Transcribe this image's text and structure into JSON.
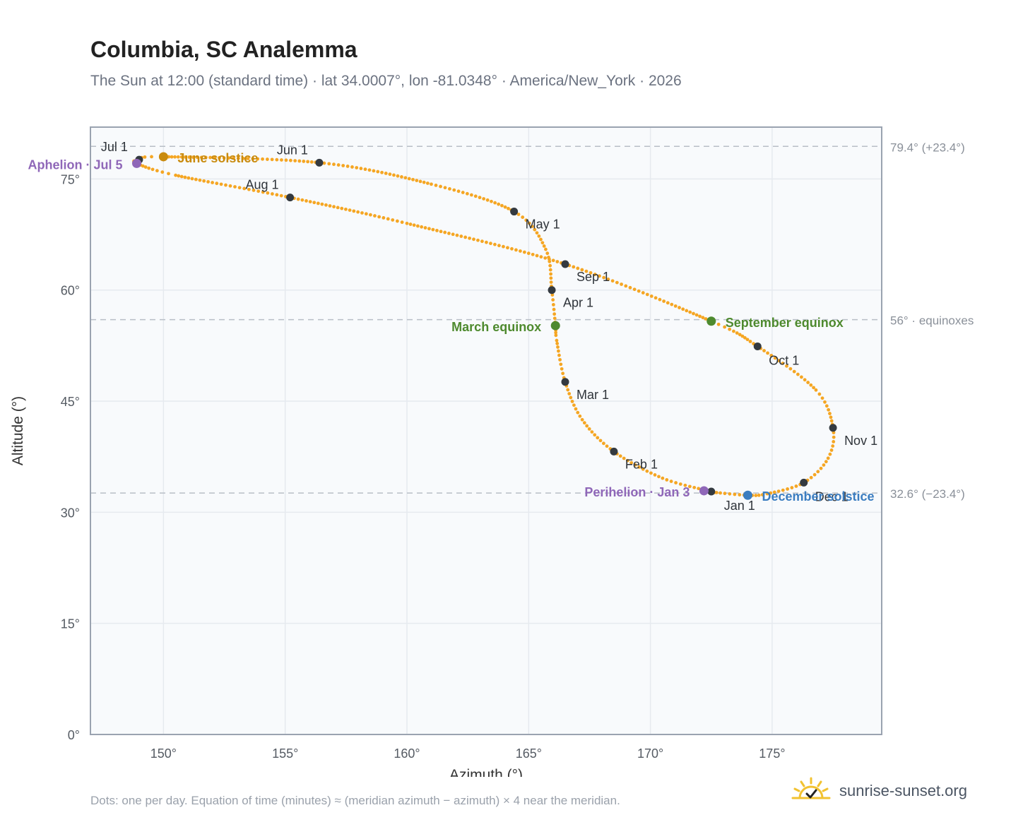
{
  "header": {
    "title": "Columbia, SC Analemma",
    "subtitle": "The Sun at 12:00 (standard time) · lat 34.0007°, lon -81.0348° · America/New_York · 2026"
  },
  "footer": {
    "note": "Dots: one per day. Equation of time (minutes) ≈ (meridian azimuth − azimuth) × 4 near the meridian.",
    "brand": "sunrise-sunset.org",
    "brand_icon": "sun-check-icon"
  },
  "colors": {
    "path": "#f5a623",
    "month_marker": "#343a40",
    "june_solstice": "#c98b0e",
    "december_solstice": "#3b7dc0",
    "equinox": "#4e8a2e",
    "perihelion_aphelion": "#8f67b8",
    "reference_line": "#b8bec6",
    "grid": "#e6eaef",
    "plot_background": "#f8fafc"
  },
  "chart_data": {
    "type": "scatter",
    "xlabel": "Azimuth (°)",
    "ylabel": "Altitude (°)",
    "xlim": [
      147,
      179.5
    ],
    "ylim": [
      0,
      82
    ],
    "x_ticks": [
      150,
      155,
      160,
      165,
      170,
      175
    ],
    "x_tick_labels": [
      "150°",
      "155°",
      "160°",
      "165°",
      "170°",
      "175°"
    ],
    "y_ticks": [
      0,
      15,
      30,
      45,
      60,
      75
    ],
    "y_tick_labels": [
      "0°",
      "15°",
      "30°",
      "45°",
      "60°",
      "75°"
    ],
    "grid": true,
    "reference_lines": [
      {
        "y": 79.4,
        "label": "79.4° (+23.4°)"
      },
      {
        "y": 56.0,
        "label": "56° · equinoxes"
      },
      {
        "y": 32.6,
        "label": "32.6° (−23.4°)"
      }
    ],
    "path_control_points": [
      {
        "date": "Jan 1",
        "az": 172.5,
        "alt": 32.8
      },
      {
        "date": "Jan 15",
        "az": 170.5,
        "alt": 34.6
      },
      {
        "date": "Feb 1",
        "az": 168.5,
        "alt": 38.2
      },
      {
        "date": "Feb 15",
        "az": 167.2,
        "alt": 42.5
      },
      {
        "date": "Mar 1",
        "az": 166.5,
        "alt": 47.6
      },
      {
        "date": "Mar 15",
        "az": 166.15,
        "alt": 53.2
      },
      {
        "date": "Mar 20",
        "az": 166.1,
        "alt": 55.2
      },
      {
        "date": "Apr 1",
        "az": 165.95,
        "alt": 60.0
      },
      {
        "date": "Apr 15",
        "az": 165.7,
        "alt": 65.5
      },
      {
        "date": "May 1",
        "az": 164.4,
        "alt": 70.6
      },
      {
        "date": "May 15",
        "az": 161.0,
        "alt": 74.3
      },
      {
        "date": "Jun 1",
        "az": 156.4,
        "alt": 77.2
      },
      {
        "date": "Jun 21",
        "az": 150.0,
        "alt": 78.0
      },
      {
        "date": "Jul 1",
        "az": 149.0,
        "alt": 77.6
      },
      {
        "date": "Jul 5",
        "az": 148.9,
        "alt": 77.1
      },
      {
        "date": "Jul 15",
        "az": 150.5,
        "alt": 75.5
      },
      {
        "date": "Aug 1",
        "az": 155.2,
        "alt": 72.5
      },
      {
        "date": "Aug 15",
        "az": 160.0,
        "alt": 69.0
      },
      {
        "date": "Sep 1",
        "az": 166.5,
        "alt": 63.5
      },
      {
        "date": "Sep 22",
        "az": 172.5,
        "alt": 55.8
      },
      {
        "date": "Oct 1",
        "az": 174.4,
        "alt": 52.4
      },
      {
        "date": "Oct 15",
        "az": 176.8,
        "alt": 46.5
      },
      {
        "date": "Nov 1",
        "az": 177.5,
        "alt": 41.4
      },
      {
        "date": "Nov 15",
        "az": 177.3,
        "alt": 37.3
      },
      {
        "date": "Dec 1",
        "az": 176.3,
        "alt": 34.0
      },
      {
        "date": "Dec 15",
        "az": 174.8,
        "alt": 32.5
      },
      {
        "date": "Dec 21",
        "az": 174.0,
        "alt": 32.3
      },
      {
        "date": "Dec 31",
        "az": 172.6,
        "alt": 32.7
      }
    ],
    "month_markers": [
      {
        "label": "Jan 1",
        "az": 172.5,
        "alt": 32.8,
        "anchor": "below"
      },
      {
        "label": "Feb 1",
        "az": 168.5,
        "alt": 38.2,
        "anchor": "right"
      },
      {
        "label": "Mar 1",
        "az": 166.5,
        "alt": 47.6,
        "anchor": "right"
      },
      {
        "label": "Apr 1",
        "az": 165.95,
        "alt": 60.0,
        "anchor": "right"
      },
      {
        "label": "May 1",
        "az": 164.4,
        "alt": 70.6,
        "anchor": "right"
      },
      {
        "label": "Jun 1",
        "az": 156.4,
        "alt": 77.2,
        "anchor": "above-left"
      },
      {
        "label": "Jul 1",
        "az": 149.0,
        "alt": 77.6,
        "anchor": "above-left"
      },
      {
        "label": "Aug 1",
        "az": 155.2,
        "alt": 72.5,
        "anchor": "above-left"
      },
      {
        "label": "Sep 1",
        "az": 166.5,
        "alt": 63.5,
        "anchor": "right"
      },
      {
        "label": "Oct 1",
        "az": 174.4,
        "alt": 52.4,
        "anchor": "below-right"
      },
      {
        "label": "Nov 1",
        "az": 177.5,
        "alt": 41.4,
        "anchor": "right"
      },
      {
        "label": "Dec 1",
        "az": 176.3,
        "alt": 34.0,
        "anchor": "below-right"
      }
    ],
    "special_points": [
      {
        "label": "June solstice",
        "az": 150.0,
        "alt": 78.0,
        "color_key": "june_solstice",
        "anchor": "right"
      },
      {
        "label": "December solstice",
        "az": 174.0,
        "alt": 32.3,
        "color_key": "december_solstice",
        "anchor": "right"
      },
      {
        "label": "March equinox",
        "az": 166.1,
        "alt": 55.2,
        "color_key": "equinox",
        "anchor": "left"
      },
      {
        "label": "September equinox",
        "az": 172.5,
        "alt": 55.8,
        "color_key": "equinox",
        "anchor": "right"
      },
      {
        "label": "Perihelion · Jan 3",
        "az": 172.2,
        "alt": 32.9,
        "color_key": "perihelion_aphelion",
        "anchor": "left"
      },
      {
        "label": "Aphelion · Jul 5",
        "az": 148.9,
        "alt": 77.1,
        "color_key": "perihelion_aphelion",
        "anchor": "left"
      }
    ]
  }
}
